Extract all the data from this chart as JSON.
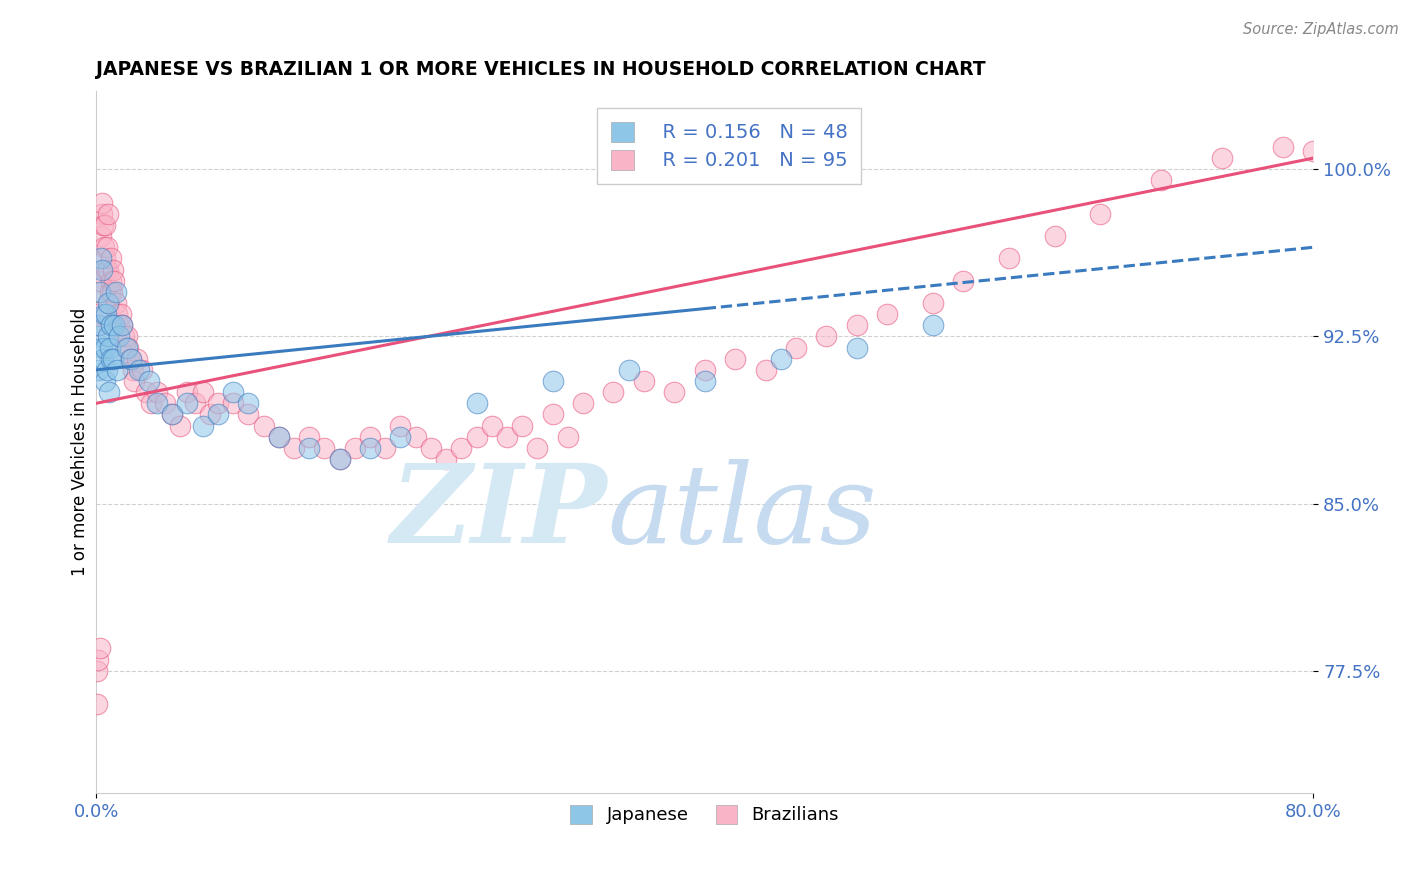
{
  "title": "JAPANESE VS BRAZILIAN 1 OR MORE VEHICLES IN HOUSEHOLD CORRELATION CHART",
  "source_text": "Source: ZipAtlas.com",
  "ylabel": "1 or more Vehicles in Household",
  "xlim": [
    0.0,
    80.0
  ],
  "ylim": [
    72.0,
    103.5
  ],
  "yticks": [
    77.5,
    85.0,
    92.5,
    100.0
  ],
  "xticks": [
    0.0,
    80.0
  ],
  "xticklabels": [
    "0.0%",
    "80.0%"
  ],
  "yticklabels": [
    "77.5%",
    "85.0%",
    "92.5%",
    "100.0%"
  ],
  "japanese_R": 0.156,
  "japanese_N": 48,
  "brazilian_R": 0.201,
  "brazilian_N": 95,
  "japanese_color": "#8ec6e8",
  "brazilian_color": "#f9b4c8",
  "japanese_line_color": "#3a7abf",
  "brazilian_line_color": "#e8527a",
  "watermark_zip_color": "#d5e9f5",
  "watermark_atlas_color": "#c0d8ee",
  "japanese_x": [
    0.1,
    0.15,
    0.2,
    0.25,
    0.3,
    0.35,
    0.4,
    0.45,
    0.5,
    0.55,
    0.6,
    0.65,
    0.7,
    0.75,
    0.8,
    0.85,
    0.9,
    0.95,
    1.0,
    1.1,
    1.2,
    1.3,
    1.4,
    1.5,
    1.7,
    2.0,
    2.3,
    2.8,
    3.5,
    4.0,
    5.0,
    6.0,
    7.0,
    8.0,
    9.0,
    10.0,
    12.0,
    14.0,
    16.0,
    18.0,
    20.0,
    25.0,
    30.0,
    35.0,
    40.0,
    45.0,
    50.0,
    55.0
  ],
  "japanese_y": [
    92.5,
    91.0,
    93.0,
    94.5,
    96.0,
    92.0,
    95.5,
    91.5,
    93.5,
    90.5,
    92.0,
    93.5,
    91.0,
    92.5,
    94.0,
    90.0,
    92.0,
    91.5,
    93.0,
    91.5,
    93.0,
    94.5,
    91.0,
    92.5,
    93.0,
    92.0,
    91.5,
    91.0,
    90.5,
    89.5,
    89.0,
    89.5,
    88.5,
    89.0,
    90.0,
    89.5,
    88.0,
    87.5,
    87.0,
    87.5,
    88.0,
    89.5,
    90.5,
    91.0,
    90.5,
    91.5,
    92.0,
    93.0
  ],
  "brazilian_x": [
    0.05,
    0.1,
    0.15,
    0.2,
    0.25,
    0.3,
    0.35,
    0.4,
    0.45,
    0.5,
    0.55,
    0.6,
    0.65,
    0.7,
    0.75,
    0.8,
    0.85,
    0.9,
    0.95,
    1.0,
    1.05,
    1.1,
    1.2,
    1.3,
    1.4,
    1.5,
    1.6,
    1.7,
    1.8,
    1.9,
    2.0,
    2.1,
    2.2,
    2.3,
    2.4,
    2.5,
    2.7,
    3.0,
    3.3,
    3.6,
    4.0,
    4.5,
    5.0,
    5.5,
    6.0,
    6.5,
    7.0,
    7.5,
    8.0,
    9.0,
    10.0,
    11.0,
    12.0,
    13.0,
    14.0,
    15.0,
    16.0,
    17.0,
    18.0,
    19.0,
    20.0,
    21.0,
    22.0,
    23.0,
    24.0,
    25.0,
    26.0,
    27.0,
    28.0,
    29.0,
    30.0,
    31.0,
    32.0,
    34.0,
    36.0,
    38.0,
    40.0,
    42.0,
    44.0,
    46.0,
    48.0,
    50.0,
    52.0,
    55.0,
    57.0,
    60.0,
    63.0,
    66.0,
    70.0,
    74.0,
    78.0,
    80.0,
    0.08,
    0.12,
    0.22
  ],
  "brazilian_y": [
    76.0,
    93.5,
    93.0,
    94.5,
    95.0,
    97.0,
    98.0,
    98.5,
    97.5,
    96.5,
    97.5,
    96.0,
    95.5,
    96.5,
    95.5,
    98.0,
    94.0,
    94.5,
    96.0,
    95.0,
    94.5,
    95.5,
    95.0,
    94.0,
    93.5,
    93.0,
    93.5,
    93.0,
    92.5,
    92.0,
    92.5,
    92.0,
    91.5,
    91.5,
    91.0,
    90.5,
    91.5,
    91.0,
    90.0,
    89.5,
    90.0,
    89.5,
    89.0,
    88.5,
    90.0,
    89.5,
    90.0,
    89.0,
    89.5,
    89.5,
    89.0,
    88.5,
    88.0,
    87.5,
    88.0,
    87.5,
    87.0,
    87.5,
    88.0,
    87.5,
    88.5,
    88.0,
    87.5,
    87.0,
    87.5,
    88.0,
    88.5,
    88.0,
    88.5,
    87.5,
    89.0,
    88.0,
    89.5,
    90.0,
    90.5,
    90.0,
    91.0,
    91.5,
    91.0,
    92.0,
    92.5,
    93.0,
    93.5,
    94.0,
    95.0,
    96.0,
    97.0,
    98.0,
    99.5,
    100.5,
    101.0,
    100.8,
    77.5,
    78.0,
    78.5
  ]
}
